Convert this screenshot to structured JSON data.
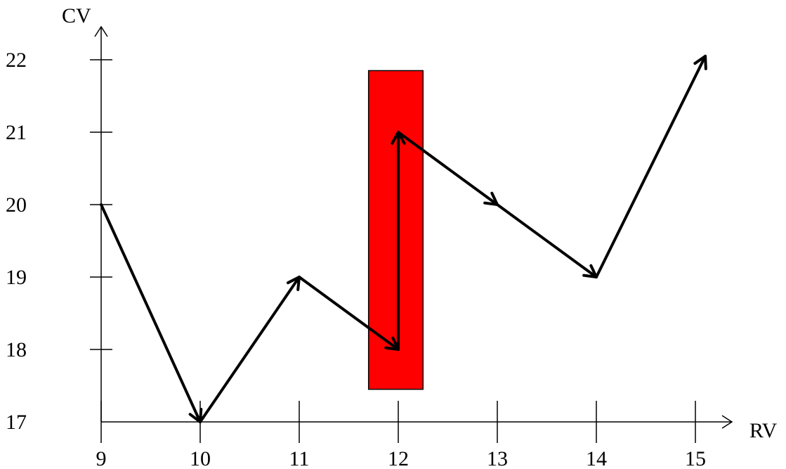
{
  "chart_data": {
    "type": "line",
    "xlabel": "RV",
    "ylabel": "CV",
    "x_ticks": [
      9,
      10,
      11,
      12,
      13,
      14,
      15
    ],
    "y_ticks": [
      17,
      18,
      19,
      20,
      21,
      22
    ],
    "xlim": [
      9,
      15.4
    ],
    "ylim": [
      17,
      22.5
    ],
    "path": [
      {
        "x": 9,
        "y": 20
      },
      {
        "x": 10,
        "y": 17
      },
      {
        "x": 11,
        "y": 19
      },
      {
        "x": 12,
        "y": 18
      },
      {
        "x": 12,
        "y": 21
      },
      {
        "x": 13,
        "y": 20
      },
      {
        "x": 14,
        "y": 19
      },
      {
        "x": 15.1,
        "y": 22.05
      }
    ],
    "highlight": {
      "color": "#ff0000",
      "x_range": [
        11.7,
        12.25
      ],
      "y_range": [
        17.45,
        21.85
      ]
    },
    "grid": false,
    "legend": "none"
  }
}
